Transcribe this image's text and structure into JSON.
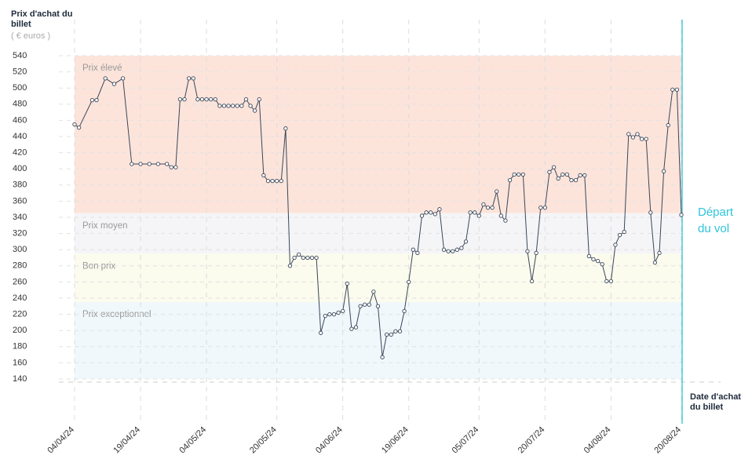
{
  "chart_data": {
    "type": "line",
    "y_title": "Prix d'achat du billet",
    "y_unit": "( € euros )",
    "x_title": "Date d'achat du billet",
    "ylim": [
      140,
      540
    ],
    "yticks": [
      140,
      160,
      180,
      200,
      220,
      240,
      260,
      280,
      300,
      320,
      340,
      360,
      380,
      400,
      420,
      440,
      460,
      480,
      500,
      520,
      540
    ],
    "grid": true,
    "xlim": [
      "2024-04-04",
      "2024-08-20"
    ],
    "xticks": [
      {
        "value": "2024-04-04",
        "label": "04/04/24"
      },
      {
        "value": "2024-04-19",
        "label": "19/04/24"
      },
      {
        "value": "2024-05-04",
        "label": "04/05/24"
      },
      {
        "value": "2024-05-20",
        "label": "20/05/24"
      },
      {
        "value": "2024-06-04",
        "label": "04/06/24"
      },
      {
        "value": "2024-06-19",
        "label": "19/06/24"
      },
      {
        "value": "2024-07-05",
        "label": "05/07/24"
      },
      {
        "value": "2024-07-20",
        "label": "20/07/24"
      },
      {
        "value": "2024-08-04",
        "label": "04/08/24"
      },
      {
        "value": "2024-08-20",
        "label": "20/08/24"
      }
    ],
    "bands": [
      {
        "label": "Prix élevé",
        "from": 345,
        "to": 540,
        "color": "#fde4db"
      },
      {
        "label": "Prix moyen",
        "from": 295,
        "to": 345,
        "color": "#f5f5f7"
      },
      {
        "label": "Bon prix",
        "from": 235,
        "to": 295,
        "color": "#fbfbee"
      },
      {
        "label": "Prix exceptionnel",
        "from": 140,
        "to": 235,
        "color": "#f0f8fc"
      }
    ],
    "departure": {
      "x": "2024-08-20",
      "label": "Départ du vol",
      "color": "#2ec4dd"
    },
    "series": [
      {
        "name": "Prix",
        "color": "#3a4658",
        "x": [
          "2024-04-04",
          "2024-04-05",
          "2024-04-08",
          "2024-04-09",
          "2024-04-11",
          "2024-04-13",
          "2024-04-15",
          "2024-04-17",
          "2024-04-19",
          "2024-04-21",
          "2024-04-23",
          "2024-04-25",
          "2024-04-26",
          "2024-04-27",
          "2024-04-28",
          "2024-04-29",
          "2024-04-30",
          "2024-05-01",
          "2024-05-02",
          "2024-05-03",
          "2024-05-04",
          "2024-05-05",
          "2024-05-06",
          "2024-05-07",
          "2024-05-08",
          "2024-05-09",
          "2024-05-10",
          "2024-05-11",
          "2024-05-12",
          "2024-05-13",
          "2024-05-14",
          "2024-05-15",
          "2024-05-16",
          "2024-05-17",
          "2024-05-18",
          "2024-05-19",
          "2024-05-20",
          "2024-05-21",
          "2024-05-22",
          "2024-05-23",
          "2024-05-24",
          "2024-05-25",
          "2024-05-26",
          "2024-05-27",
          "2024-05-28",
          "2024-05-29",
          "2024-05-30",
          "2024-05-31",
          "2024-06-01",
          "2024-06-02",
          "2024-06-03",
          "2024-06-04",
          "2024-06-05",
          "2024-06-06",
          "2024-06-07",
          "2024-06-08",
          "2024-06-09",
          "2024-06-10",
          "2024-06-11",
          "2024-06-12",
          "2024-06-13",
          "2024-06-14",
          "2024-06-15",
          "2024-06-16",
          "2024-06-17",
          "2024-06-18",
          "2024-06-19",
          "2024-06-20",
          "2024-06-21",
          "2024-06-22",
          "2024-06-23",
          "2024-06-24",
          "2024-06-25",
          "2024-06-26",
          "2024-06-27",
          "2024-06-28",
          "2024-06-29",
          "2024-06-30",
          "2024-07-01",
          "2024-07-02",
          "2024-07-03",
          "2024-07-04",
          "2024-07-05",
          "2024-07-06",
          "2024-07-07",
          "2024-07-08",
          "2024-07-09",
          "2024-07-10",
          "2024-07-11",
          "2024-07-12",
          "2024-07-13",
          "2024-07-14",
          "2024-07-15",
          "2024-07-16",
          "2024-07-17",
          "2024-07-18",
          "2024-07-19",
          "2024-07-20",
          "2024-07-21",
          "2024-07-22",
          "2024-07-23",
          "2024-07-24",
          "2024-07-25",
          "2024-07-26",
          "2024-07-27",
          "2024-07-28",
          "2024-07-29",
          "2024-07-30",
          "2024-07-31",
          "2024-08-01",
          "2024-08-02",
          "2024-08-03",
          "2024-08-04",
          "2024-08-05",
          "2024-08-06",
          "2024-08-07",
          "2024-08-08",
          "2024-08-09",
          "2024-08-10",
          "2024-08-11",
          "2024-08-12",
          "2024-08-13",
          "2024-08-14",
          "2024-08-15",
          "2024-08-16",
          "2024-08-17",
          "2024-08-18",
          "2024-08-19",
          "2024-08-20"
        ],
        "values": [
          455,
          451,
          485,
          485,
          512,
          505,
          512,
          406,
          406,
          406,
          406,
          406,
          402,
          402,
          486,
          486,
          512,
          512,
          486,
          486,
          486,
          486,
          486,
          478,
          478,
          478,
          478,
          478,
          478,
          486,
          478,
          472,
          486,
          392,
          385,
          385,
          385,
          385,
          450,
          280,
          290,
          294,
          290,
          290,
          290,
          290,
          197,
          218,
          220,
          220,
          222,
          224,
          258,
          202,
          204,
          230,
          232,
          232,
          248,
          230,
          167,
          195,
          195,
          199,
          199,
          224,
          260,
          300,
          296,
          342,
          346,
          346,
          344,
          350,
          300,
          298,
          298,
          300,
          302,
          310,
          346,
          346,
          342,
          356,
          352,
          352,
          372,
          342,
          336,
          386,
          393,
          393,
          393,
          298,
          261,
          296,
          352,
          352,
          396,
          402,
          388,
          393,
          393,
          386,
          386,
          392,
          392,
          292,
          288,
          286,
          282,
          261,
          261,
          306,
          318,
          322,
          443,
          439,
          443,
          437,
          437,
          346,
          284,
          296,
          397,
          454,
          498,
          498,
          343
        ]
      }
    ]
  }
}
